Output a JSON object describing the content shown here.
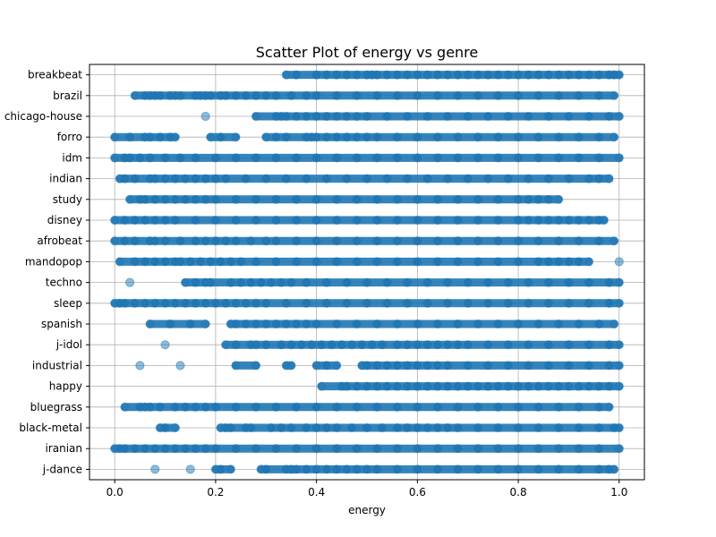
{
  "chart_data": {
    "type": "scatter",
    "title": "Scatter Plot of energy vs genre",
    "xlabel": "energy",
    "ylabel": "",
    "xlim": [
      -0.05,
      1.05
    ],
    "xticks": [
      0.0,
      0.2,
      0.4,
      0.6,
      0.8,
      1.0
    ],
    "xtick_labels": [
      "0.0",
      "0.2",
      "0.4",
      "0.6",
      "0.8",
      "1.0"
    ],
    "grid": true,
    "point_color": "#1f77b4",
    "categories": [
      "breakbeat",
      "brazil",
      "chicago-house",
      "forro",
      "idm",
      "indian",
      "study",
      "disney",
      "afrobeat",
      "mandopop",
      "techno",
      "sleep",
      "spanish",
      "j-idol",
      "industrial",
      "happy",
      "bluegrass",
      "black-metal",
      "iranian",
      "j-dance"
    ],
    "series": [
      {
        "category": "breakbeat",
        "x": [
          0.34,
          0.36,
          0.4,
          0.42,
          0.44,
          0.46,
          0.48,
          0.5,
          0.51,
          0.52,
          0.54,
          0.56,
          0.58,
          0.6,
          0.62,
          0.64,
          0.66,
          0.68,
          0.7,
          0.72,
          0.74,
          0.76,
          0.78,
          0.8,
          0.82,
          0.84,
          0.86,
          0.88,
          0.9,
          0.92,
          0.94,
          0.96,
          0.98,
          0.99,
          1.0
        ]
      },
      {
        "category": "brazil",
        "x": [
          0.04,
          0.06,
          0.07,
          0.08,
          0.09,
          0.11,
          0.12,
          0.13,
          0.16,
          0.17,
          0.18,
          0.19,
          0.21,
          0.22,
          0.24,
          0.26,
          0.28,
          0.3,
          0.32,
          0.35,
          0.38,
          0.4,
          0.44,
          0.48,
          0.52,
          0.56,
          0.6,
          0.64,
          0.68,
          0.72,
          0.76,
          0.8,
          0.84,
          0.88,
          0.92,
          0.96,
          0.99
        ]
      },
      {
        "category": "chicago-house",
        "x": [
          0.18,
          0.28,
          0.32,
          0.33,
          0.34,
          0.36,
          0.38,
          0.4,
          0.42,
          0.44,
          0.46,
          0.48,
          0.5,
          0.54,
          0.58,
          0.62,
          0.66,
          0.7,
          0.74,
          0.78,
          0.82,
          0.86,
          0.9,
          0.94,
          0.98,
          1.0
        ]
      },
      {
        "category": "forro",
        "x": [
          0.0,
          0.03,
          0.06,
          0.07,
          0.09,
          0.11,
          0.12,
          0.19,
          0.21,
          0.24,
          0.3,
          0.32,
          0.34,
          0.38,
          0.39,
          0.4,
          0.42,
          0.44,
          0.46,
          0.48,
          0.5,
          0.52,
          0.56,
          0.6,
          0.64,
          0.68,
          0.72,
          0.76,
          0.8,
          0.84,
          0.88,
          0.92,
          0.96,
          0.99
        ]
      },
      {
        "category": "idm",
        "x": [
          0.0,
          0.02,
          0.03,
          0.05,
          0.07,
          0.1,
          0.13,
          0.16,
          0.2,
          0.24,
          0.28,
          0.32,
          0.36,
          0.4,
          0.44,
          0.48,
          0.52,
          0.56,
          0.6,
          0.64,
          0.68,
          0.72,
          0.76,
          0.8,
          0.84,
          0.88,
          0.92,
          0.96,
          1.0
        ]
      },
      {
        "category": "indian",
        "x": [
          0.01,
          0.02,
          0.04,
          0.07,
          0.08,
          0.1,
          0.12,
          0.14,
          0.16,
          0.18,
          0.2,
          0.22,
          0.26,
          0.3,
          0.34,
          0.38,
          0.42,
          0.46,
          0.5,
          0.54,
          0.58,
          0.62,
          0.66,
          0.7,
          0.74,
          0.78,
          0.82,
          0.86,
          0.9,
          0.94,
          0.96,
          0.98
        ]
      },
      {
        "category": "study",
        "x": [
          0.03,
          0.05,
          0.06,
          0.08,
          0.1,
          0.12,
          0.14,
          0.16,
          0.18,
          0.2,
          0.24,
          0.28,
          0.32,
          0.36,
          0.4,
          0.44,
          0.48,
          0.52,
          0.56,
          0.6,
          0.64,
          0.68,
          0.72,
          0.76,
          0.8,
          0.82,
          0.84,
          0.86,
          0.88
        ]
      },
      {
        "category": "disney",
        "x": [
          0.0,
          0.02,
          0.04,
          0.06,
          0.08,
          0.1,
          0.12,
          0.16,
          0.2,
          0.24,
          0.28,
          0.32,
          0.36,
          0.4,
          0.44,
          0.48,
          0.52,
          0.56,
          0.6,
          0.64,
          0.68,
          0.72,
          0.76,
          0.8,
          0.82,
          0.84,
          0.86,
          0.88,
          0.9,
          0.92,
          0.94,
          0.96,
          0.97
        ]
      },
      {
        "category": "afrobeat",
        "x": [
          0.0,
          0.02,
          0.04,
          0.07,
          0.08,
          0.1,
          0.13,
          0.16,
          0.18,
          0.2,
          0.22,
          0.24,
          0.27,
          0.3,
          0.32,
          0.36,
          0.4,
          0.44,
          0.48,
          0.52,
          0.56,
          0.6,
          0.64,
          0.68,
          0.72,
          0.76,
          0.8,
          0.84,
          0.88,
          0.92,
          0.96,
          0.99
        ]
      },
      {
        "category": "mandopop",
        "x": [
          0.01,
          0.04,
          0.06,
          0.08,
          0.1,
          0.12,
          0.13,
          0.15,
          0.17,
          0.19,
          0.21,
          0.23,
          0.25,
          0.28,
          0.32,
          0.36,
          0.4,
          0.44,
          0.48,
          0.52,
          0.56,
          0.6,
          0.64,
          0.68,
          0.72,
          0.76,
          0.8,
          0.84,
          0.86,
          0.88,
          0.9,
          0.92,
          0.94,
          1.0
        ]
      },
      {
        "category": "techno",
        "x": [
          0.03,
          0.14,
          0.16,
          0.18,
          0.19,
          0.23,
          0.25,
          0.27,
          0.29,
          0.31,
          0.33,
          0.35,
          0.38,
          0.42,
          0.46,
          0.5,
          0.54,
          0.58,
          0.62,
          0.66,
          0.7,
          0.74,
          0.78,
          0.82,
          0.86,
          0.9,
          0.94,
          0.98,
          1.0
        ]
      },
      {
        "category": "sleep",
        "x": [
          0.0,
          0.01,
          0.02,
          0.04,
          0.06,
          0.08,
          0.1,
          0.12,
          0.14,
          0.16,
          0.18,
          0.2,
          0.22,
          0.24,
          0.26,
          0.28,
          0.3,
          0.34,
          0.38,
          0.42,
          0.46,
          0.5,
          0.54,
          0.58,
          0.62,
          0.66,
          0.7,
          0.74,
          0.78,
          0.82,
          0.86,
          0.9,
          0.94,
          0.98,
          1.0
        ]
      },
      {
        "category": "spanish",
        "x": [
          0.07,
          0.11,
          0.15,
          0.18,
          0.23,
          0.24,
          0.26,
          0.28,
          0.3,
          0.32,
          0.34,
          0.36,
          0.38,
          0.4,
          0.44,
          0.48,
          0.52,
          0.56,
          0.6,
          0.64,
          0.68,
          0.72,
          0.76,
          0.8,
          0.84,
          0.88,
          0.92,
          0.96,
          0.99
        ]
      },
      {
        "category": "j-idol",
        "x": [
          0.1,
          0.22,
          0.24,
          0.27,
          0.28,
          0.3,
          0.33,
          0.35,
          0.37,
          0.39,
          0.41,
          0.43,
          0.45,
          0.47,
          0.49,
          0.51,
          0.53,
          0.56,
          0.58,
          0.6,
          0.62,
          0.64,
          0.66,
          0.68,
          0.7,
          0.74,
          0.78,
          0.82,
          0.86,
          0.9,
          0.94,
          0.98,
          1.0
        ]
      },
      {
        "category": "industrial",
        "x": [
          0.05,
          0.13,
          0.24,
          0.28,
          0.34,
          0.35,
          0.4,
          0.42,
          0.44,
          0.49,
          0.5,
          0.52,
          0.54,
          0.56,
          0.58,
          0.6,
          0.62,
          0.64,
          0.66,
          0.7,
          0.74,
          0.78,
          0.82,
          0.86,
          0.9,
          0.94,
          0.98,
          1.0
        ]
      },
      {
        "category": "happy",
        "x": [
          0.41,
          0.45,
          0.46,
          0.48,
          0.5,
          0.52,
          0.54,
          0.56,
          0.58,
          0.6,
          0.62,
          0.64,
          0.66,
          0.68,
          0.7,
          0.72,
          0.74,
          0.76,
          0.78,
          0.8,
          0.82,
          0.84,
          0.86,
          0.88,
          0.9,
          0.92,
          0.94,
          0.96,
          0.98,
          1.0
        ]
      },
      {
        "category": "bluegrass",
        "x": [
          0.02,
          0.05,
          0.06,
          0.07,
          0.09,
          0.12,
          0.14,
          0.16,
          0.18,
          0.2,
          0.24,
          0.28,
          0.32,
          0.36,
          0.4,
          0.44,
          0.48,
          0.52,
          0.56,
          0.6,
          0.64,
          0.68,
          0.72,
          0.76,
          0.8,
          0.84,
          0.88,
          0.92,
          0.96,
          0.98
        ]
      },
      {
        "category": "black-metal",
        "x": [
          0.09,
          0.1,
          0.12,
          0.21,
          0.22,
          0.23,
          0.26,
          0.27,
          0.31,
          0.33,
          0.35,
          0.38,
          0.4,
          0.42,
          0.44,
          0.47,
          0.5,
          0.53,
          0.56,
          0.58,
          0.6,
          0.62,
          0.64,
          0.66,
          0.68,
          0.72,
          0.76,
          0.8,
          0.84,
          0.88,
          0.92,
          0.96,
          0.99,
          1.0
        ]
      },
      {
        "category": "iranian",
        "x": [
          0.0,
          0.01,
          0.02,
          0.04,
          0.06,
          0.08,
          0.1,
          0.12,
          0.14,
          0.16,
          0.18,
          0.2,
          0.24,
          0.28,
          0.32,
          0.36,
          0.4,
          0.44,
          0.48,
          0.52,
          0.56,
          0.6,
          0.64,
          0.68,
          0.72,
          0.76,
          0.8,
          0.84,
          0.88,
          0.92,
          0.96,
          1.0
        ]
      },
      {
        "category": "j-dance",
        "x": [
          0.08,
          0.15,
          0.2,
          0.21,
          0.23,
          0.29,
          0.3,
          0.34,
          0.35,
          0.36,
          0.38,
          0.4,
          0.42,
          0.44,
          0.46,
          0.48,
          0.5,
          0.52,
          0.56,
          0.6,
          0.64,
          0.68,
          0.72,
          0.76,
          0.8,
          0.84,
          0.88,
          0.92,
          0.96,
          0.98,
          0.99
        ]
      }
    ]
  }
}
